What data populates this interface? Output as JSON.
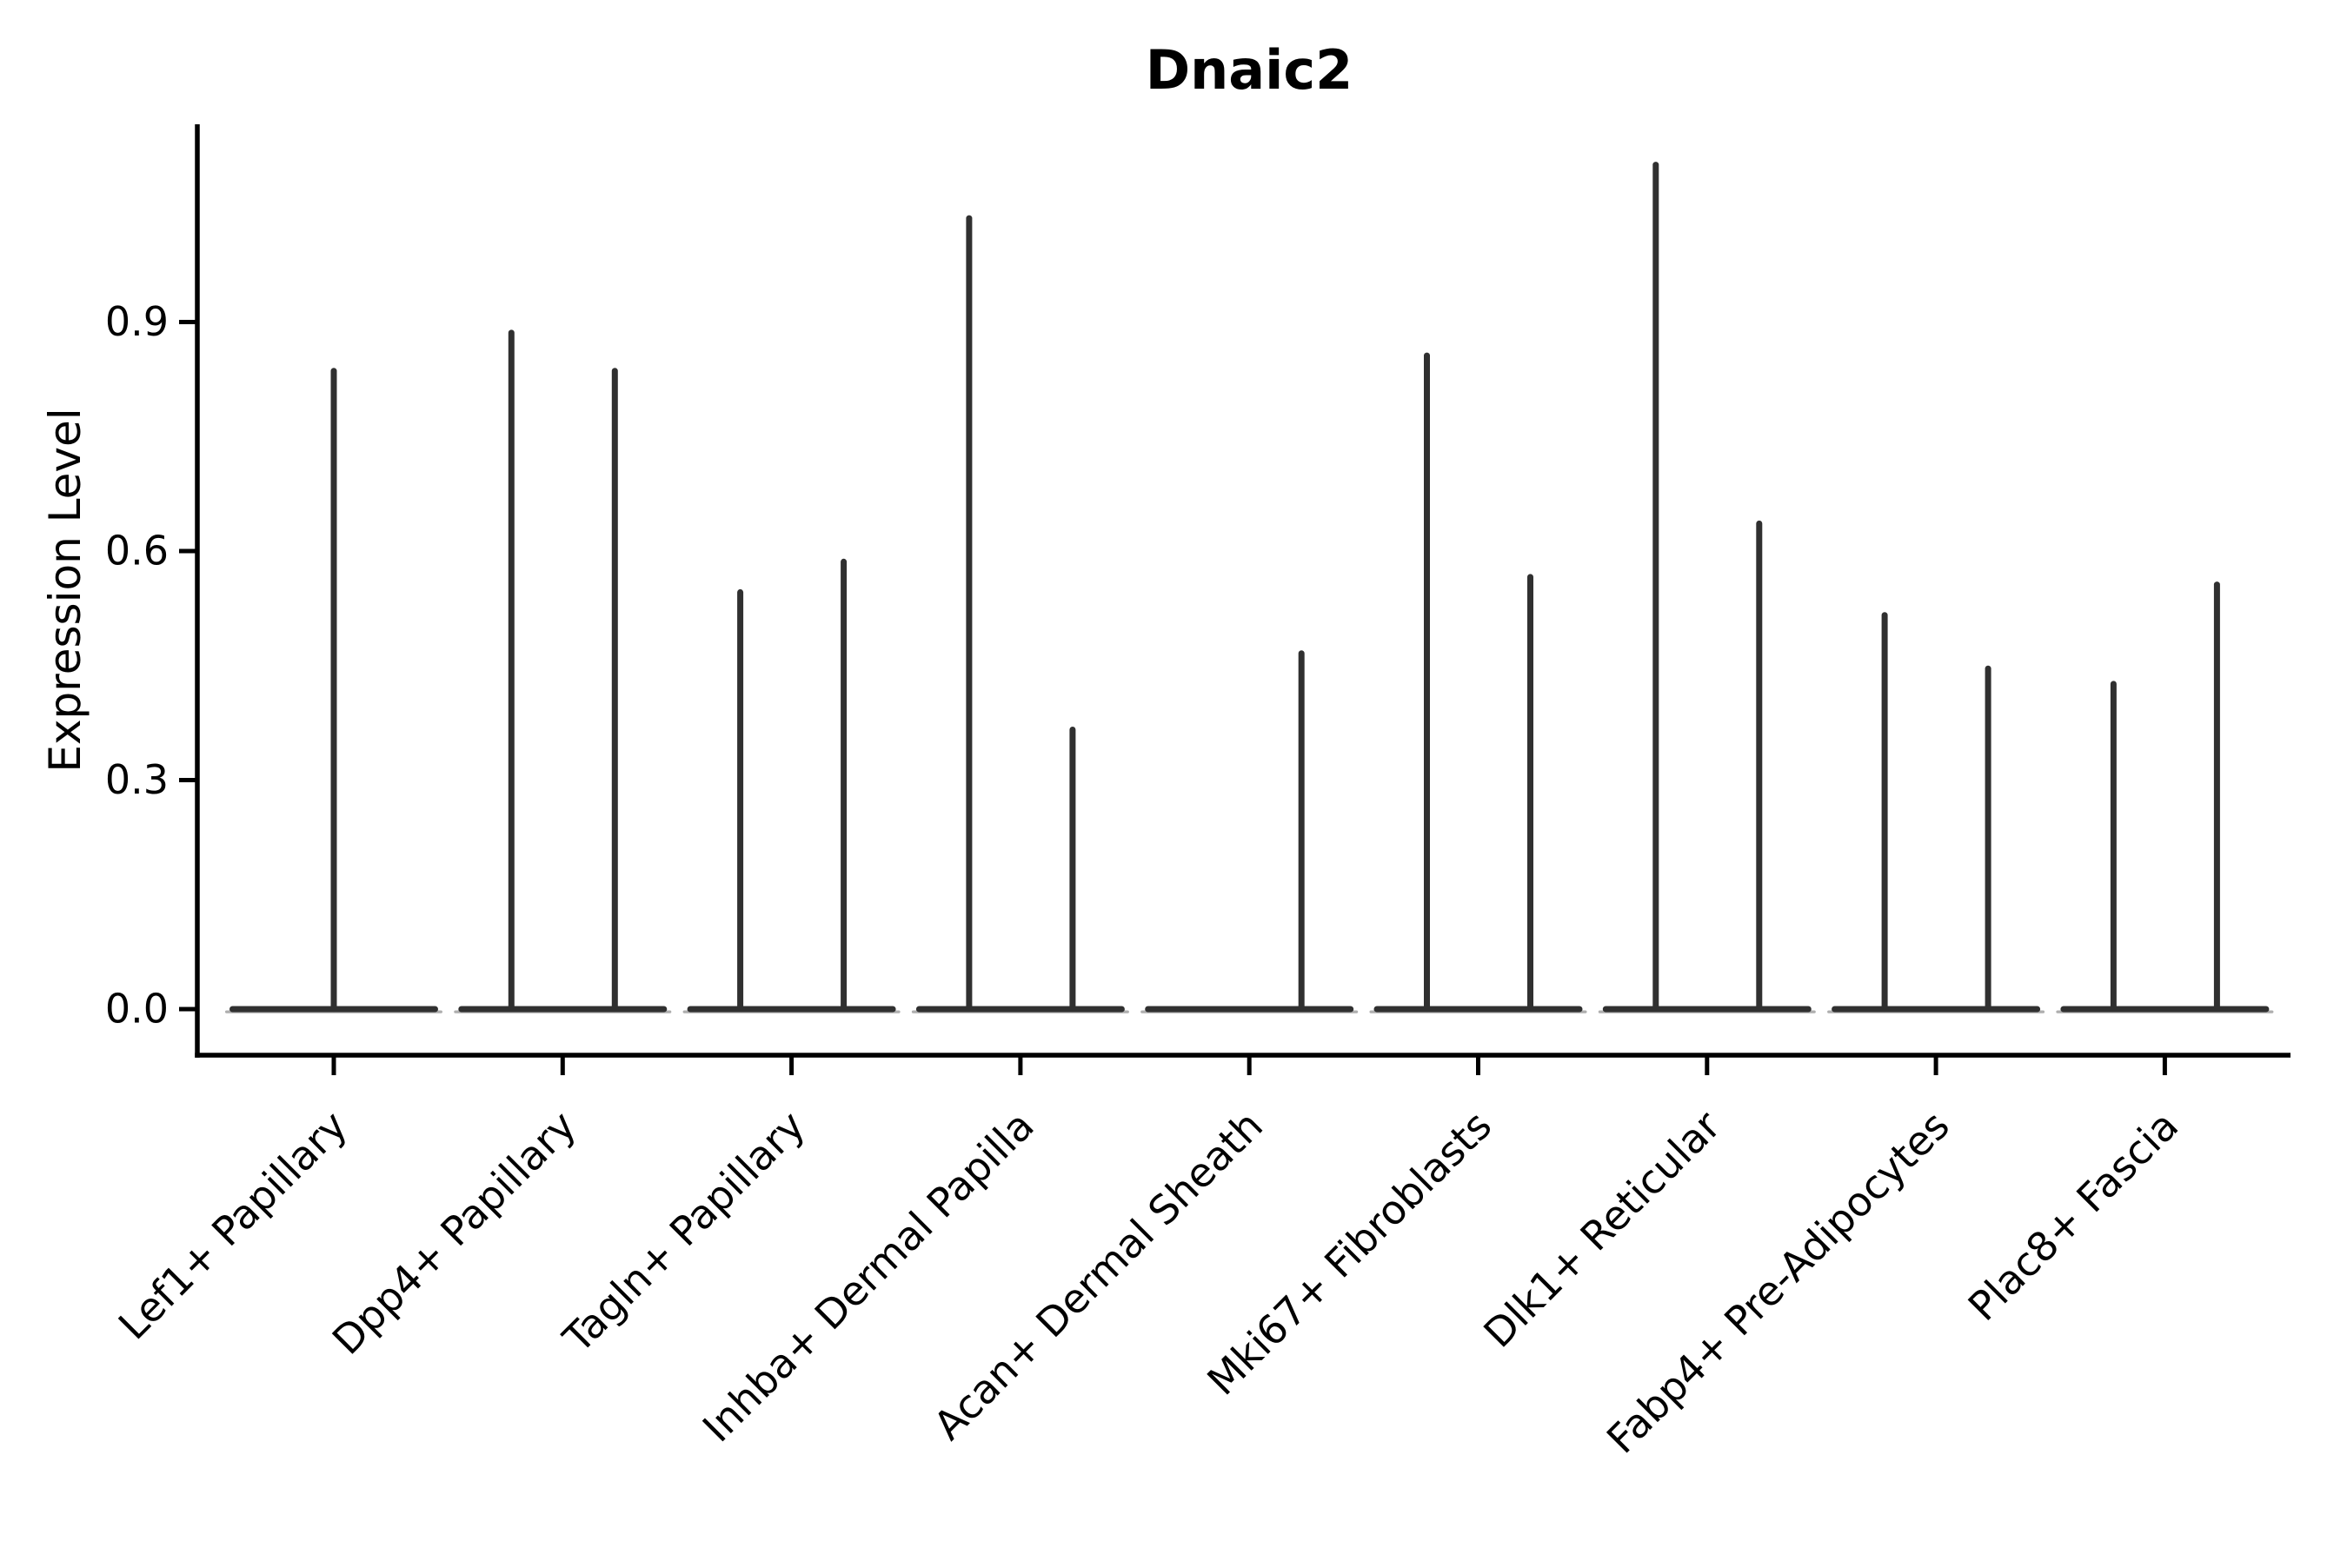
{
  "figure": {
    "background": "#ffffff"
  },
  "chart_data": {
    "type": "violin",
    "title": "Dnaic2",
    "xlabel": "",
    "ylabel": "Expression Level",
    "ylim": [
      0,
      1.16
    ],
    "ytick_labels": [
      "0.0",
      "0.3",
      "0.6",
      "0.9"
    ],
    "ytick_values": [
      0.0,
      0.3,
      0.6,
      0.9
    ],
    "grid": "off",
    "legend": "none",
    "axis_color": "#000000",
    "violin_color": "#303030",
    "violin_edge_shadow_color": "#9a9a9a",
    "baseline_value": 0.0,
    "categories": [
      "Lef1+ Papillary",
      "Dpp4+ Papillary",
      "Tagln+ Papillary",
      "Inhba+ Dermal Papilla",
      "Acan+ Dermal Sheath",
      "Mki67+ Fibroblasts",
      "Dlk1+ Reticular",
      "Fabp4+ Pre-Adipocytes",
      "Plac8+ Fascia"
    ],
    "series": [
      {
        "category": "Lef1+ Papillary",
        "violins": [
          {
            "position": "center",
            "max_expression": 0.84
          }
        ]
      },
      {
        "category": "Dpp4+ Papillary",
        "violins": [
          {
            "position": "left",
            "max_expression": 0.89
          },
          {
            "position": "right",
            "max_expression": 0.84
          }
        ]
      },
      {
        "category": "Tagln+ Papillary",
        "violins": [
          {
            "position": "left",
            "max_expression": 0.55
          },
          {
            "position": "right",
            "max_expression": 0.59
          }
        ]
      },
      {
        "category": "Inhba+ Dermal Papilla",
        "violins": [
          {
            "position": "left",
            "max_expression": 1.04
          },
          {
            "position": "right",
            "max_expression": 0.37
          }
        ]
      },
      {
        "category": "Acan+ Dermal Sheath",
        "violins": [
          {
            "position": "right",
            "max_expression": 0.47
          }
        ]
      },
      {
        "category": "Mki67+ Fibroblasts",
        "violins": [
          {
            "position": "left",
            "max_expression": 0.86
          },
          {
            "position": "right",
            "max_expression": 0.57
          }
        ]
      },
      {
        "category": "Dlk1+ Reticular",
        "violins": [
          {
            "position": "left",
            "max_expression": 1.11
          },
          {
            "position": "right",
            "max_expression": 0.64
          }
        ]
      },
      {
        "category": "Fabp4+ Pre-Adipocytes",
        "violins": [
          {
            "position": "left",
            "max_expression": 0.52
          },
          {
            "position": "right",
            "max_expression": 0.45
          }
        ]
      },
      {
        "category": "Plac8+ Fascia",
        "violins": [
          {
            "position": "left",
            "max_expression": 0.43
          },
          {
            "position": "right",
            "max_expression": 0.56
          }
        ]
      }
    ]
  }
}
